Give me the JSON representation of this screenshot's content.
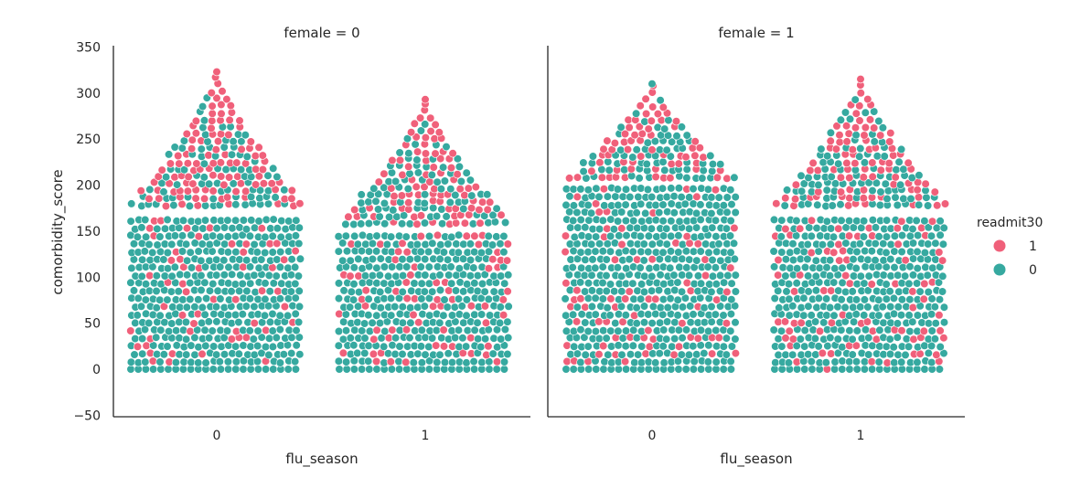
{
  "chart_data": {
    "type": "scatter",
    "subtype": "swarm",
    "panels": [
      {
        "title": "female = 0",
        "female": 0
      },
      {
        "title": "female = 1",
        "female": 1
      }
    ],
    "xlabel": "flu_season",
    "ylabel": "comorbidity_score",
    "categories": [
      "0",
      "1"
    ],
    "ylim": [
      -50,
      350
    ],
    "yticks": [
      -50,
      0,
      50,
      100,
      150,
      200,
      250,
      300,
      350
    ],
    "grid": false,
    "legend": {
      "title": "readmit30",
      "placement": "right",
      "entries": [
        {
          "label": "1",
          "color": "#f0607a"
        },
        {
          "label": "0",
          "color": "#36a9a0"
        }
      ]
    },
    "groups": [
      {
        "female": 0,
        "flu_season": "0",
        "y_range": [
          0,
          323
        ],
        "readmit1_max": 323,
        "bulk_top": 170,
        "readmit1_share": 0.18
      },
      {
        "female": 0,
        "flu_season": "1",
        "y_range": [
          0,
          293
        ],
        "readmit1_max": 293,
        "bulk_top": 150,
        "readmit1_share": 0.22
      },
      {
        "female": 1,
        "flu_season": "0",
        "y_range": [
          0,
          310
        ],
        "readmit1_max": 290,
        "bulk_top": 200,
        "readmit1_share": 0.18
      },
      {
        "female": 1,
        "flu_season": "1",
        "y_range": [
          0,
          315
        ],
        "readmit1_max": 315,
        "bulk_top": 170,
        "readmit1_share": 0.22
      }
    ],
    "colors": {
      "readmit1": "#f0607a",
      "readmit0": "#36a9a0",
      "axis": "#262626"
    }
  }
}
